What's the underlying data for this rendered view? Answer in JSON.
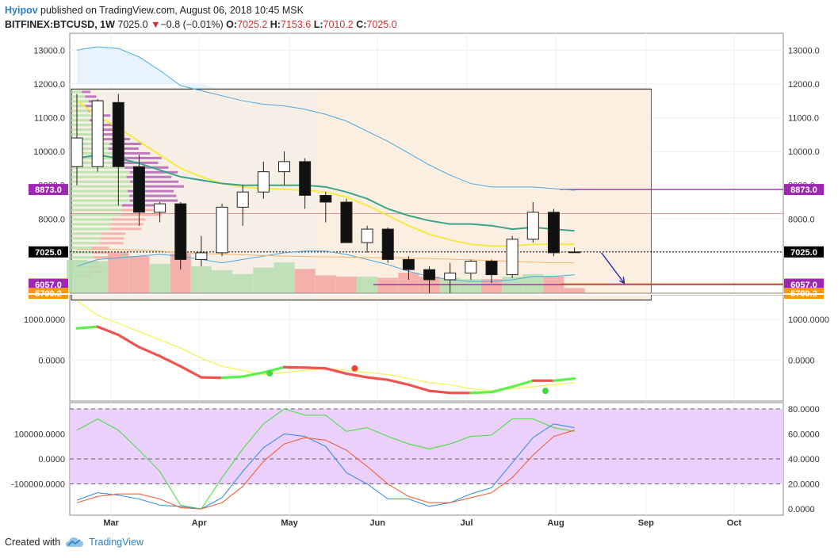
{
  "header": {
    "author": "Hyipov",
    "published": "published on TradingView.com, August 06, 2018 10:45 MSK",
    "symbol": "BITFINEX:BTCUSD, 1W",
    "last": "7025.0",
    "change_arrow": "▼",
    "change": "−0.8 (−0.01%)",
    "o_label": "O:",
    "o": "7025.2",
    "h_label": "H:",
    "h": "7153.6",
    "l_label": "L:",
    "l": "7010.2",
    "c_label": "C:",
    "c": "7025.0"
  },
  "footer": {
    "created_with": "Created with",
    "brand": "TradingView",
    "logo_icon": "tradingview-cloud-icon"
  },
  "colors": {
    "up": "#ffffff",
    "down": "#111111",
    "magenta": "#9c27b0",
    "orange": "#ff9800",
    "navy": "#1a1aaa",
    "stoch_fill": "#e6c8fa"
  },
  "chart_data": [
    {
      "type": "candlestick",
      "panel": "price",
      "x_labels": [
        "Mar",
        "Apr",
        "May",
        "Jun",
        "Jul",
        "Aug",
        "Sep",
        "Oct"
      ],
      "x_label_weeks": [
        1.65,
        5.9,
        10.25,
        14.5,
        18.8,
        23.1,
        27.45,
        31.7
      ],
      "y_ticks": [
        "13000.0",
        "12000.0",
        "11000.0",
        "10000.0",
        "9000.0",
        "8000.0",
        "7000.0"
      ],
      "y_tick_values": [
        13000,
        12000,
        11000,
        10000,
        9000,
        8000,
        7000
      ],
      "ylim": [
        5800,
        13500
      ],
      "candles": [
        {
          "o": 9550,
          "h": 11700,
          "l": 9000,
          "c": 10400
        },
        {
          "o": 9550,
          "h": 11550,
          "l": 9400,
          "c": 11500
        },
        {
          "o": 11450,
          "h": 11700,
          "l": 8400,
          "c": 9550
        },
        {
          "o": 9550,
          "h": 9900,
          "l": 7800,
          "c": 8200
        },
        {
          "o": 8200,
          "h": 8500,
          "l": 7900,
          "c": 8450
        },
        {
          "o": 8450,
          "h": 8500,
          "l": 6500,
          "c": 6800
        },
        {
          "o": 6800,
          "h": 7500,
          "l": 6600,
          "c": 7000
        },
        {
          "o": 7000,
          "h": 8450,
          "l": 6900,
          "c": 8350
        },
        {
          "o": 8350,
          "h": 9000,
          "l": 7800,
          "c": 8800
        },
        {
          "o": 8800,
          "h": 9700,
          "l": 8600,
          "c": 9400
        },
        {
          "o": 9400,
          "h": 10000,
          "l": 9000,
          "c": 9700
        },
        {
          "o": 9700,
          "h": 9800,
          "l": 8300,
          "c": 8700
        },
        {
          "o": 8700,
          "h": 8800,
          "l": 7900,
          "c": 8500
        },
        {
          "o": 8500,
          "h": 8600,
          "l": 7300,
          "c": 7300
        },
        {
          "o": 7300,
          "h": 7800,
          "l": 7000,
          "c": 7700
        },
        {
          "o": 7700,
          "h": 7750,
          "l": 6700,
          "c": 6800
        },
        {
          "o": 6800,
          "h": 6900,
          "l": 6200,
          "c": 6500
        },
        {
          "o": 6500,
          "h": 6600,
          "l": 5800,
          "c": 6200
        },
        {
          "o": 6200,
          "h": 6700,
          "l": 5800,
          "c": 6400
        },
        {
          "o": 6400,
          "h": 6800,
          "l": 6200,
          "c": 6750
        },
        {
          "o": 6750,
          "h": 6800,
          "l": 6100,
          "c": 6350
        },
        {
          "o": 6350,
          "h": 7500,
          "l": 6250,
          "c": 7400
        },
        {
          "o": 7400,
          "h": 8500,
          "l": 7300,
          "c": 8200
        },
        {
          "o": 8200,
          "h": 8300,
          "l": 6900,
          "c": 7000
        },
        {
          "o": 7025.2,
          "h": 7153.6,
          "l": 7010.2,
          "c": 7025.0
        }
      ],
      "series": [
        {
          "kind": "yellow-ma",
          "values": [
            11500,
            11050,
            10700,
            10300,
            9900,
            9500,
            9250,
            9050,
            8950,
            8900,
            8880,
            8850,
            8800,
            8650,
            8400,
            8100,
            7800,
            7550,
            7380,
            7250,
            7200,
            7200,
            7250,
            7250,
            7250
          ]
        },
        {
          "kind": "teal-ma",
          "values": [
            9800,
            9900,
            9800,
            9650,
            9450,
            9250,
            9150,
            9050,
            9000,
            9000,
            9000,
            9000,
            8950,
            8800,
            8600,
            8300,
            8100,
            7950,
            7850,
            7850,
            7800,
            7700,
            7750,
            7700,
            7650
          ]
        },
        {
          "kind": "upper-band",
          "values": [
            13000,
            13100,
            13050,
            12800,
            12400,
            11950,
            11800,
            11650,
            11500,
            11400,
            11350,
            11250,
            11100,
            10900,
            10600,
            10300,
            9950,
            9600,
            9300,
            9050,
            8950,
            8950,
            8950,
            8900,
            8850
          ]
        },
        {
          "kind": "lower-band",
          "values": [
            6600,
            6800,
            6850,
            6900,
            6950,
            6900,
            6800,
            6700,
            6800,
            6900,
            7000,
            7050,
            7050,
            6950,
            6800,
            6650,
            6450,
            6300,
            6200,
            6150,
            6150,
            6200,
            6300,
            6300,
            6350
          ]
        },
        {
          "kind": "orange-line",
          "values": [
            7100,
            7100,
            7100,
            7080,
            7050,
            7000,
            6980,
            6960,
            6940,
            6920,
            6900,
            6890,
            6880,
            6870,
            6860,
            6850,
            6840,
            6830,
            6810,
            6790,
            6770,
            6750,
            6720,
            6700,
            6700
          ]
        }
      ],
      "volume": [
        2.6,
        2.5,
        3.2,
        2.9,
        2.3,
        3.1,
        2.1,
        1.8,
        1.5,
        2.0,
        2.4,
        1.9,
        1.4,
        1.3,
        1.3,
        1.2,
        1.6,
        1.3,
        1.2,
        1.1,
        1.1,
        1.3,
        1.5,
        1.3,
        0.4
      ],
      "volume_up": [
        true,
        true,
        false,
        false,
        true,
        false,
        true,
        true,
        true,
        true,
        true,
        false,
        false,
        false,
        true,
        false,
        false,
        false,
        true,
        true,
        false,
        true,
        true,
        false,
        false
      ],
      "levels": [
        {
          "label": "8873.0",
          "value": 8873.0,
          "color": "#9c27b0"
        },
        {
          "label": "7025.0",
          "value": 7025.0,
          "color": "#000000"
        },
        {
          "label": "6079.9",
          "value": 6079.9,
          "color": "#ff9800"
        },
        {
          "label": "6057.0",
          "value": 6057.0,
          "color": "#9c27b0"
        },
        {
          "label": "5799.2",
          "value": 5799.2,
          "color": "#ff9800"
        }
      ]
    },
    {
      "type": "line",
      "panel": "macd",
      "y_ticks": [
        "1000.0000",
        "0.0000"
      ],
      "y_tick_values": [
        1000,
        0
      ],
      "ylim": [
        -1000,
        1600
      ],
      "series": [
        {
          "kind": "macd-signal-yellow",
          "values": [
            1450,
            1100,
            900,
            700,
            500,
            300,
            50,
            -150,
            -250,
            -350,
            -300,
            -250,
            -200,
            -250,
            -300,
            -350,
            -450,
            -550,
            -600,
            -700,
            -750,
            -700,
            -650,
            -600,
            -550
          ]
        },
        {
          "kind": "macd-main",
          "values": [
            780,
            820,
            620,
            320,
            100,
            -150,
            -420,
            -430,
            -400,
            -300,
            -170,
            -180,
            -200,
            -330,
            -420,
            -480,
            -600,
            -750,
            -800,
            -800,
            -780,
            -650,
            -500,
            -500,
            -450
          ]
        }
      ],
      "dots": [
        {
          "week": 9.3,
          "value": -320,
          "color": "#3ddc3d"
        },
        {
          "week": 13.4,
          "value": -200,
          "color": "#f44336"
        },
        {
          "week": 22.6,
          "value": -750,
          "color": "#3ddc3d"
        }
      ]
    },
    {
      "type": "line",
      "panel": "stoch",
      "left_ticks": [
        "100000.0000",
        "0.0000",
        "-100000.0000"
      ],
      "left_tick_values": [
        100000,
        0,
        -100000
      ],
      "right_ticks": [
        "80.0000",
        "60.0000",
        "40.0000",
        "20.0000",
        "0.0000"
      ],
      "right_tick_values": [
        80,
        60,
        40,
        20,
        0
      ],
      "ylim": [
        -5,
        85
      ],
      "band": [
        20,
        80
      ],
      "series": [
        {
          "kind": "green",
          "values": [
            63,
            72,
            63,
            47,
            30,
            3,
            0,
            25,
            48,
            68,
            80,
            75,
            75,
            62,
            65,
            58,
            52,
            48,
            52,
            58,
            59,
            72,
            72,
            65,
            62
          ]
        },
        {
          "kind": "blue",
          "values": [
            7,
            13,
            11,
            8,
            3,
            2,
            0,
            9,
            30,
            49,
            60,
            58,
            50,
            29,
            20,
            8,
            8,
            2,
            5,
            12,
            17,
            37,
            57,
            68,
            65
          ]
        },
        {
          "kind": "orange",
          "values": [
            5,
            10,
            12,
            12,
            8,
            1,
            0,
            5,
            18,
            38,
            52,
            57,
            55,
            47,
            34,
            20,
            10,
            5,
            5,
            9,
            13,
            25,
            43,
            58,
            63
          ]
        }
      ]
    }
  ]
}
